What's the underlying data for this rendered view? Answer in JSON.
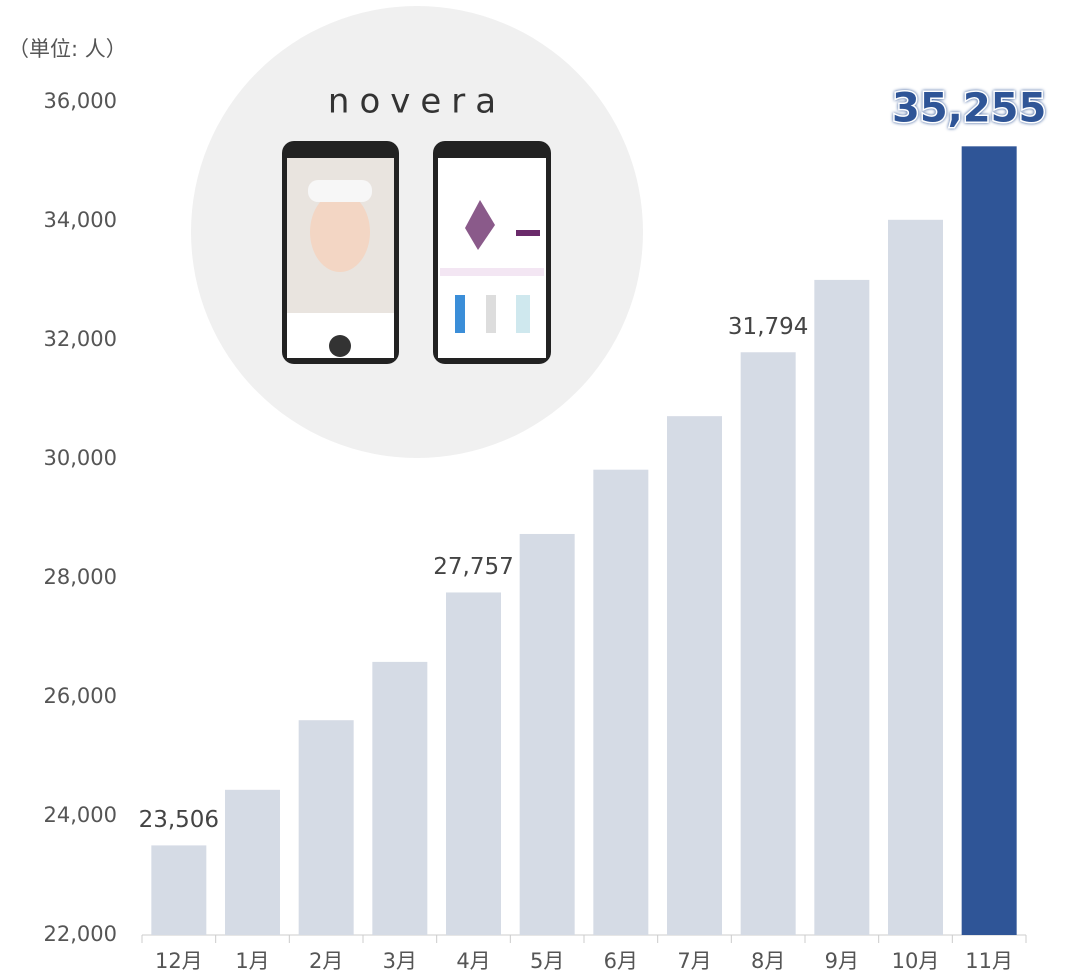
{
  "chart_data": {
    "type": "bar",
    "unit_label": "（単位: 人）",
    "logo": "novera",
    "categories": [
      "12月",
      "1月",
      "2月",
      "3月",
      "4月",
      "5月",
      "6月",
      "7月",
      "8月",
      "9月",
      "10月",
      "11月"
    ],
    "values": [
      23506,
      24440,
      25610,
      26590,
      27757,
      28740,
      29820,
      30720,
      31794,
      33010,
      34020,
      35255
    ],
    "value_labels": [
      "23,506",
      null,
      null,
      null,
      "27,757",
      null,
      null,
      null,
      "31,794",
      null,
      null,
      "35,255"
    ],
    "colors": [
      "#d5dbe5",
      "#d5dbe5",
      "#d5dbe5",
      "#d5dbe5",
      "#d5dbe5",
      "#d5dbe5",
      "#d5dbe5",
      "#d5dbe5",
      "#d5dbe5",
      "#d5dbe5",
      "#d5dbe5",
      "#2f5597"
    ],
    "ylim": [
      22000,
      36000
    ],
    "yticks": [
      {
        "value": 22000,
        "label": "22,000"
      },
      {
        "value": 24000,
        "label": "24,000"
      },
      {
        "value": 26000,
        "label": "26,000"
      },
      {
        "value": 28000,
        "label": "28,000"
      },
      {
        "value": 30000,
        "label": "30,000"
      },
      {
        "value": 32000,
        "label": "32,000"
      },
      {
        "value": 34000,
        "label": "34,000"
      },
      {
        "value": 36000,
        "label": "36,000"
      }
    ],
    "grid": false
  }
}
